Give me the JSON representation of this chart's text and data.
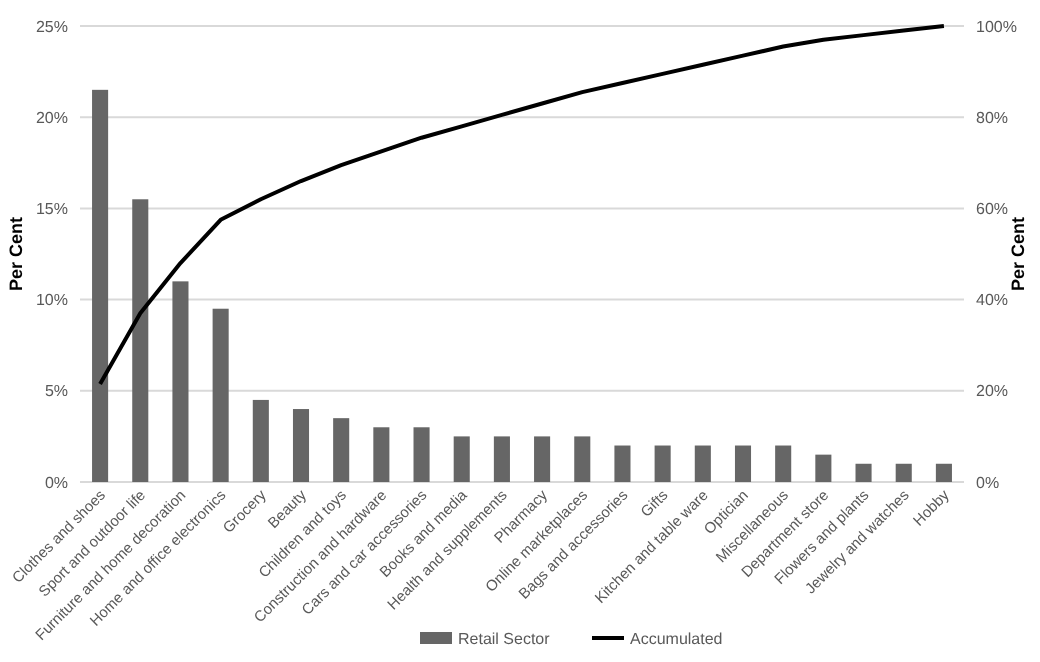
{
  "chart_data": {
    "type": "bar",
    "ylabel": "Per Cent",
    "y2label": "Per Cent",
    "categories": [
      "Clothes and shoes",
      "Sport and outdoor life",
      "Furniture and home decoration",
      "Home and office electronics",
      "Grocery",
      "Beauty",
      "Children and toys",
      "Construction and hardware",
      "Cars and car accessories",
      "Books and media",
      "Health and supplements",
      "Pharmacy",
      "Online marketplaces",
      "Bags and accessories",
      "Gifts",
      "Kitchen and table ware",
      "Optician",
      "Miscellaneous",
      "Department store",
      "Flowers and plants",
      "Jewelry and watches",
      "Hobby"
    ],
    "series": [
      {
        "name": "Retail Sector",
        "color": "#666666",
        "values": [
          21.5,
          15.5,
          11,
          9.5,
          4.5,
          4,
          3.5,
          3,
          3,
          2.5,
          2.5,
          2.5,
          2.5,
          2,
          2,
          2,
          2,
          2,
          1.5,
          1,
          1,
          1
        ]
      },
      {
        "name": "Accumulated",
        "type": "line",
        "axis": "y2",
        "color": "#000000",
        "values": [
          21.5,
          37,
          48,
          57.5,
          62,
          66,
          69.5,
          72.5,
          75.5,
          78,
          80.5,
          83,
          85.5,
          87.5,
          89.5,
          91.5,
          93.5,
          95.5,
          97,
          98,
          99,
          100
        ]
      }
    ],
    "ylim": [
      0,
      25
    ],
    "yticks": [
      {
        "value": 0,
        "label": "0%"
      },
      {
        "value": 5,
        "label": "5%"
      },
      {
        "value": 10,
        "label": "10%"
      },
      {
        "value": 15,
        "label": "15%"
      },
      {
        "value": 20,
        "label": "20%"
      },
      {
        "value": 25,
        "label": "25%"
      }
    ],
    "y2lim": [
      0,
      100
    ],
    "y2ticks": [
      {
        "value": 0,
        "label": "0%"
      },
      {
        "value": 20,
        "label": "20%"
      },
      {
        "value": 40,
        "label": "40%"
      },
      {
        "value": 60,
        "label": "60%"
      },
      {
        "value": 80,
        "label": "80%"
      },
      {
        "value": 100,
        "label": "100%"
      }
    ],
    "grid": "y",
    "legend": "bottom",
    "marker": "none",
    "line_style": "solid"
  }
}
